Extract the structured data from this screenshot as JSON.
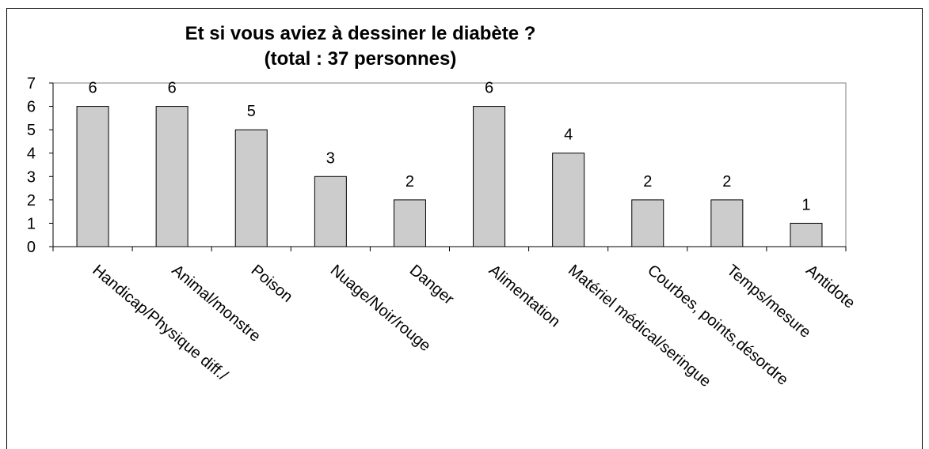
{
  "chart_data": {
    "type": "bar",
    "title": "Et si vous aviez à dessiner le diabète ?",
    "subtitle": "(total : 37 personnes)",
    "categories": [
      "Handicap/Physique diff./",
      "Animal/monstre",
      "Poison",
      "Nuage/Noir/rouge",
      "Danger",
      "Alimentation",
      "Matériel médical/seringue",
      "Courbes, points,désordre",
      "Temps/mesure",
      "Antidote"
    ],
    "values": [
      6,
      6,
      5,
      3,
      2,
      6,
      4,
      2,
      2,
      1
    ],
    "color": "#cccccc",
    "ylim": [
      0,
      7
    ],
    "yticks": [
      0,
      1,
      2,
      3,
      4,
      5,
      6,
      7
    ],
    "grid": false
  }
}
